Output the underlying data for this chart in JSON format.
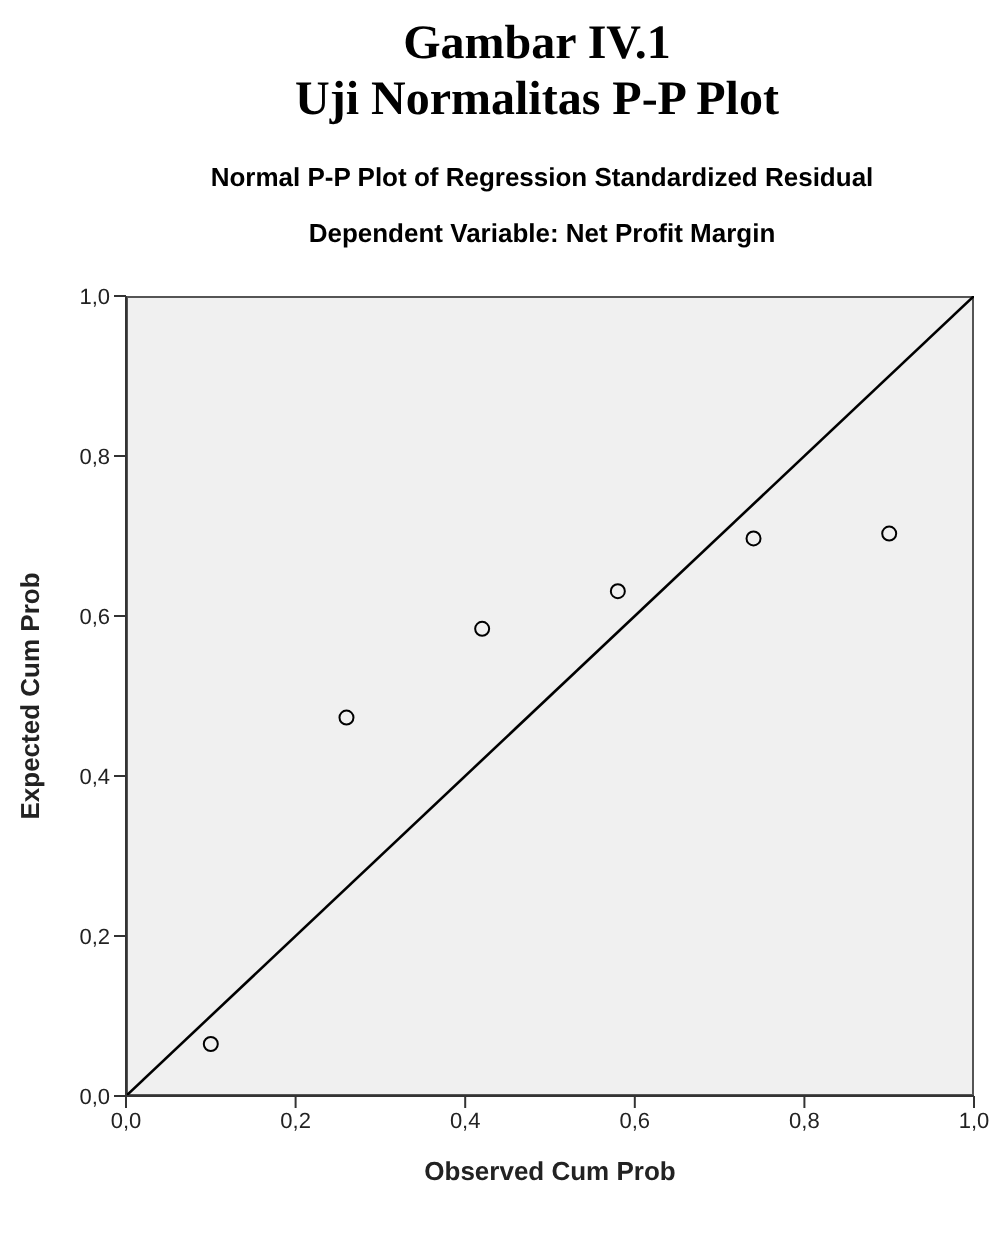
{
  "chart_data": {
    "type": "scatter",
    "title": "Normal P-P Plot of Regression Standardized Residual",
    "subtitle": "Dependent Variable: Net Profit Margin",
    "annotations": [
      "Gambar IV.1",
      "Uji Normalitas P-P Plot"
    ],
    "xlabel": "Observed Cum Prob",
    "ylabel": "Expected Cum Prob",
    "series": [
      {
        "color": "#000000",
        "marker": "circle",
        "x": [
          0.1,
          0.26,
          0.42,
          0.58,
          0.74,
          0.9
        ],
        "values": [
          0.065,
          0.473,
          0.584,
          0.631,
          0.697,
          0.703
        ]
      },
      {
        "type": "line",
        "color": "#000000",
        "marker": "none",
        "x": [
          0,
          1
        ],
        "values": [
          0,
          1
        ]
      }
    ],
    "xlim": [
      0,
      1
    ],
    "ylim": [
      0,
      1
    ],
    "xticks": [
      {
        "value": 0,
        "label": "0,0"
      },
      {
        "value": 0.2,
        "label": "0,2"
      },
      {
        "value": 0.4,
        "label": "0,4"
      },
      {
        "value": 0.6,
        "label": "0,6"
      },
      {
        "value": 0.8,
        "label": "0,8"
      },
      {
        "value": 1,
        "label": "1,0"
      }
    ],
    "yticks": [
      {
        "value": 0,
        "label": "0,0"
      },
      {
        "value": 0.2,
        "label": "0,2"
      },
      {
        "value": 0.4,
        "label": "0,4"
      },
      {
        "value": 0.6,
        "label": "0,6"
      },
      {
        "value": 0.8,
        "label": "0,8"
      },
      {
        "value": 1,
        "label": "1,0"
      }
    ],
    "grid": false
  }
}
